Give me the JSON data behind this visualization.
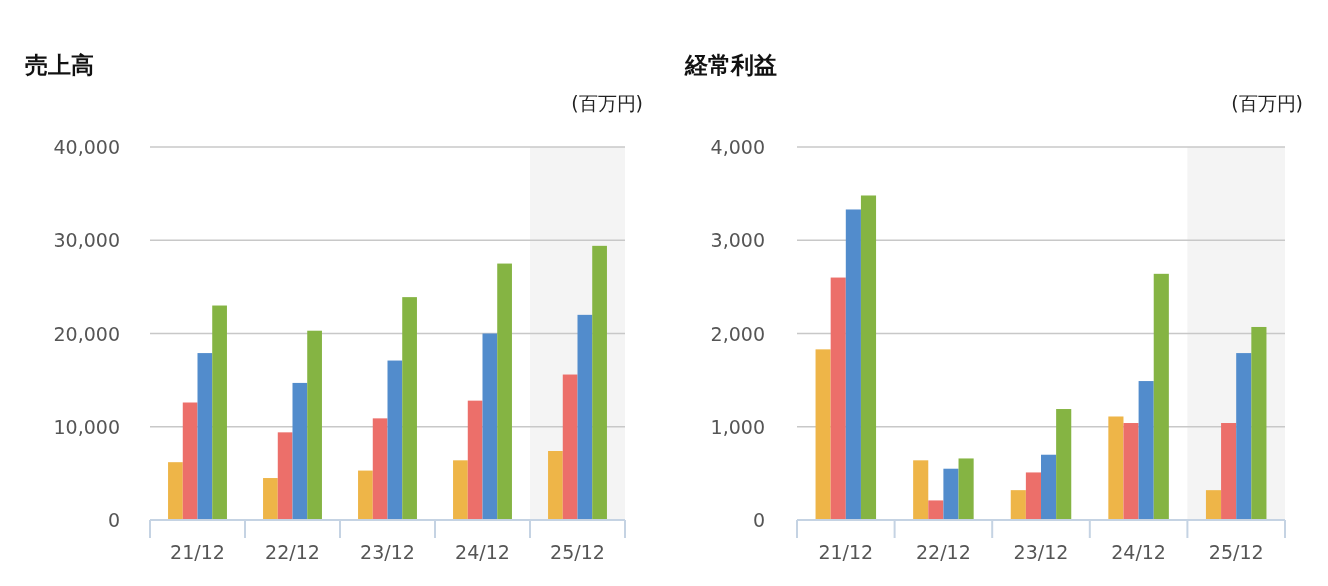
{
  "chart_data": [
    {
      "type": "bar",
      "title": "売上高",
      "ylabel": "(百万円)",
      "categories": [
        "21/12",
        "22/12",
        "23/12",
        "24/12",
        "25/12"
      ],
      "series": [
        {
          "color": "#eeb548",
          "values": [
            6200,
            4500,
            5300,
            6400,
            7400
          ]
        },
        {
          "color": "#ec6f6a",
          "values": [
            12600,
            9400,
            10900,
            12800,
            15600
          ]
        },
        {
          "color": "#528ccc",
          "values": [
            17900,
            14700,
            17100,
            20000,
            22000
          ]
        },
        {
          "color": "#85b443",
          "values": [
            23000,
            20300,
            23900,
            27500,
            29400
          ]
        }
      ],
      "ylim": [
        0,
        40000
      ],
      "yticks": [
        0,
        {
          "value": 10000,
          "label": "10,000"
        },
        {
          "value": 20000,
          "label": "20,000"
        },
        {
          "value": 30000,
          "label": "30,000"
        },
        {
          "value": 40000,
          "label": "40,000"
        }
      ],
      "grid": "y",
      "bands": [
        {
          "axis": "x",
          "from": "25/12",
          "to": "25/12",
          "color": "#f4f4f4"
        }
      ]
    },
    {
      "type": "bar",
      "title": "経常利益",
      "ylabel": "(百万円)",
      "categories": [
        "21/12",
        "22/12",
        "23/12",
        "24/12",
        "25/12"
      ],
      "series": [
        {
          "color": "#eeb548",
          "values": [
            1830,
            640,
            320,
            1110,
            320
          ]
        },
        {
          "color": "#ec6f6a",
          "values": [
            2600,
            210,
            510,
            1040,
            1040
          ]
        },
        {
          "color": "#528ccc",
          "values": [
            3330,
            550,
            700,
            1490,
            1790
          ]
        },
        {
          "color": "#85b443",
          "values": [
            3480,
            660,
            1190,
            2640,
            2070
          ]
        }
      ],
      "ylim": [
        0,
        4000
      ],
      "yticks": [
        0,
        {
          "value": 1000,
          "label": "1,000"
        },
        {
          "value": 2000,
          "label": "2,000"
        },
        {
          "value": 3000,
          "label": "3,000"
        },
        {
          "value": 4000,
          "label": "4,000"
        }
      ],
      "grid": "y",
      "bands": [
        {
          "axis": "x",
          "from": "25/12",
          "to": "25/12",
          "color": "#f4f4f4"
        }
      ]
    }
  ]
}
